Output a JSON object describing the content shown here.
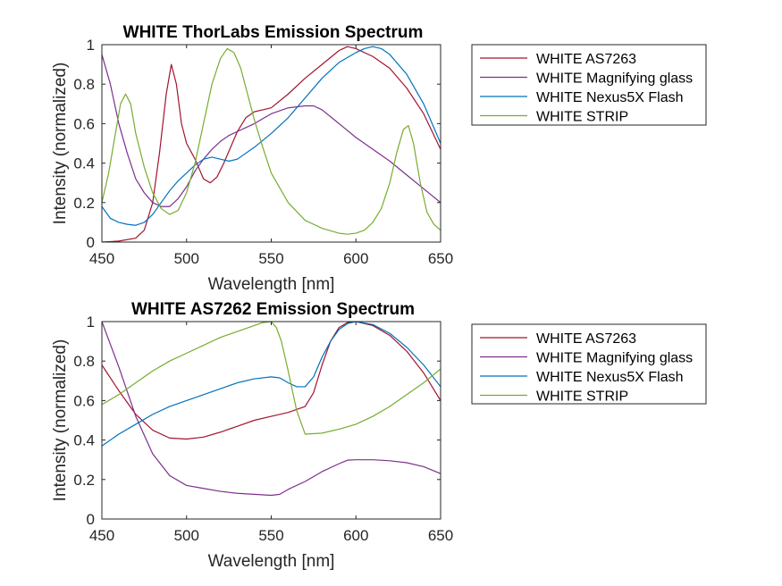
{
  "chart_data": [
    {
      "type": "line",
      "title": "WHITE ThorLabs Emission Spectrum",
      "xlabel": "Wavelength [nm]",
      "ylabel": "Intensity (normalized)",
      "xlim": [
        450,
        650
      ],
      "ylim": [
        0,
        1
      ],
      "xticks": [
        450,
        500,
        550,
        600,
        650
      ],
      "yticks": [
        0,
        0.2,
        0.4,
        0.6,
        0.8,
        1
      ],
      "ytick_labels": [
        "0",
        "0.2",
        "0.4",
        "0.6",
        "0.8",
        "1"
      ],
      "grid": false,
      "legend_position": "outside-right",
      "series": [
        {
          "name": "WHITE AS7263",
          "color": "#A2142F",
          "x": [
            450,
            460,
            470,
            475,
            480,
            484,
            488,
            491,
            494,
            497,
            500,
            505,
            510,
            514,
            518,
            522,
            526,
            530,
            535,
            540,
            545,
            550,
            560,
            570,
            580,
            590,
            595,
            600,
            610,
            620,
            630,
            640,
            650
          ],
          "y": [
            0,
            0.005,
            0.02,
            0.06,
            0.2,
            0.45,
            0.75,
            0.9,
            0.8,
            0.6,
            0.5,
            0.42,
            0.32,
            0.3,
            0.33,
            0.4,
            0.48,
            0.56,
            0.63,
            0.66,
            0.67,
            0.68,
            0.75,
            0.83,
            0.9,
            0.97,
            0.99,
            0.98,
            0.94,
            0.88,
            0.78,
            0.65,
            0.47
          ]
        },
        {
          "name": "WHITE Magnifying glass",
          "color": "#7E2F8E",
          "x": [
            450,
            455,
            460,
            465,
            470,
            475,
            480,
            485,
            490,
            495,
            500,
            505,
            510,
            515,
            520,
            525,
            530,
            540,
            550,
            560,
            570,
            575,
            580,
            590,
            600,
            610,
            620,
            630,
            640,
            650
          ],
          "y": [
            0.95,
            0.8,
            0.6,
            0.45,
            0.32,
            0.25,
            0.2,
            0.18,
            0.18,
            0.22,
            0.28,
            0.36,
            0.42,
            0.47,
            0.51,
            0.54,
            0.56,
            0.6,
            0.65,
            0.68,
            0.69,
            0.69,
            0.67,
            0.6,
            0.53,
            0.47,
            0.41,
            0.34,
            0.27,
            0.2
          ]
        },
        {
          "name": "WHITE Nexus5X Flash",
          "color": "#0072BD",
          "x": [
            450,
            455,
            460,
            465,
            470,
            475,
            480,
            485,
            490,
            495,
            500,
            505,
            510,
            515,
            520,
            525,
            530,
            540,
            550,
            560,
            570,
            580,
            590,
            600,
            605,
            610,
            615,
            620,
            630,
            640,
            650
          ],
          "y": [
            0.18,
            0.12,
            0.1,
            0.09,
            0.085,
            0.1,
            0.14,
            0.2,
            0.26,
            0.31,
            0.35,
            0.39,
            0.42,
            0.43,
            0.42,
            0.41,
            0.42,
            0.48,
            0.55,
            0.63,
            0.73,
            0.83,
            0.91,
            0.96,
            0.98,
            0.99,
            0.98,
            0.95,
            0.85,
            0.7,
            0.5
          ]
        },
        {
          "name": "WHITE STRIP",
          "color": "#77AC30",
          "x": [
            450,
            454,
            458,
            461,
            464,
            467,
            470,
            475,
            480,
            485,
            490,
            495,
            500,
            505,
            510,
            515,
            520,
            524,
            528,
            532,
            536,
            540,
            545,
            550,
            560,
            570,
            580,
            590,
            595,
            600,
            605,
            610,
            615,
            620,
            624,
            628,
            631,
            634,
            638,
            642,
            646,
            650
          ],
          "y": [
            0.2,
            0.35,
            0.55,
            0.7,
            0.75,
            0.7,
            0.55,
            0.38,
            0.25,
            0.17,
            0.14,
            0.16,
            0.25,
            0.4,
            0.6,
            0.8,
            0.93,
            0.98,
            0.96,
            0.88,
            0.75,
            0.62,
            0.48,
            0.35,
            0.2,
            0.11,
            0.07,
            0.045,
            0.04,
            0.045,
            0.06,
            0.1,
            0.17,
            0.3,
            0.45,
            0.57,
            0.59,
            0.5,
            0.3,
            0.15,
            0.09,
            0.06
          ]
        }
      ]
    },
    {
      "type": "line",
      "title": "WHITE AS7262 Emission Spectrum",
      "xlabel": "Wavelength [nm]",
      "ylabel": "Intensity (normalized)",
      "xlim": [
        450,
        650
      ],
      "ylim": [
        0,
        1
      ],
      "xticks": [
        450,
        500,
        550,
        600,
        650
      ],
      "yticks": [
        0,
        0.2,
        0.4,
        0.6,
        0.8,
        1
      ],
      "ytick_labels": [
        "0",
        "0.2",
        "0.4",
        "0.6",
        "0.8",
        "1"
      ],
      "grid": false,
      "legend_position": "outside-right",
      "series": [
        {
          "name": "WHITE AS7263",
          "color": "#A2142F",
          "x": [
            450,
            460,
            470,
            480,
            490,
            500,
            510,
            520,
            530,
            540,
            550,
            560,
            570,
            575,
            580,
            585,
            590,
            595,
            600,
            610,
            620,
            630,
            640,
            650
          ],
          "y": [
            0.78,
            0.65,
            0.53,
            0.45,
            0.41,
            0.405,
            0.415,
            0.44,
            0.47,
            0.5,
            0.52,
            0.54,
            0.57,
            0.64,
            0.78,
            0.9,
            0.97,
            0.995,
            1,
            0.98,
            0.93,
            0.85,
            0.74,
            0.6
          ]
        },
        {
          "name": "WHITE Magnifying glass",
          "color": "#7E2F8E",
          "x": [
            450,
            460,
            470,
            480,
            490,
            500,
            510,
            520,
            530,
            540,
            550,
            555,
            560,
            570,
            580,
            590,
            595,
            600,
            610,
            620,
            630,
            640,
            650
          ],
          "y": [
            1,
            0.77,
            0.52,
            0.33,
            0.22,
            0.17,
            0.155,
            0.14,
            0.13,
            0.125,
            0.12,
            0.125,
            0.15,
            0.19,
            0.24,
            0.28,
            0.298,
            0.3,
            0.3,
            0.295,
            0.285,
            0.265,
            0.23
          ]
        },
        {
          "name": "WHITE Nexus5X Flash",
          "color": "#0072BD",
          "x": [
            450,
            460,
            470,
            480,
            490,
            500,
            510,
            520,
            530,
            540,
            550,
            555,
            560,
            565,
            570,
            575,
            580,
            585,
            590,
            595,
            600,
            610,
            620,
            630,
            640,
            650
          ],
          "y": [
            0.37,
            0.43,
            0.48,
            0.53,
            0.57,
            0.6,
            0.63,
            0.66,
            0.69,
            0.71,
            0.72,
            0.715,
            0.69,
            0.67,
            0.67,
            0.72,
            0.82,
            0.9,
            0.96,
            0.99,
            1,
            0.985,
            0.94,
            0.87,
            0.78,
            0.67
          ]
        },
        {
          "name": "WHITE STRIP",
          "color": "#77AC30",
          "x": [
            450,
            460,
            470,
            480,
            490,
            500,
            510,
            520,
            530,
            540,
            545,
            550,
            553,
            556,
            560,
            565,
            570,
            580,
            590,
            600,
            610,
            620,
            630,
            640,
            650
          ],
          "y": [
            0.58,
            0.63,
            0.69,
            0.75,
            0.8,
            0.84,
            0.88,
            0.92,
            0.95,
            0.98,
            0.995,
            1,
            0.97,
            0.9,
            0.75,
            0.55,
            0.43,
            0.435,
            0.455,
            0.48,
            0.52,
            0.57,
            0.63,
            0.69,
            0.76
          ]
        }
      ]
    }
  ]
}
